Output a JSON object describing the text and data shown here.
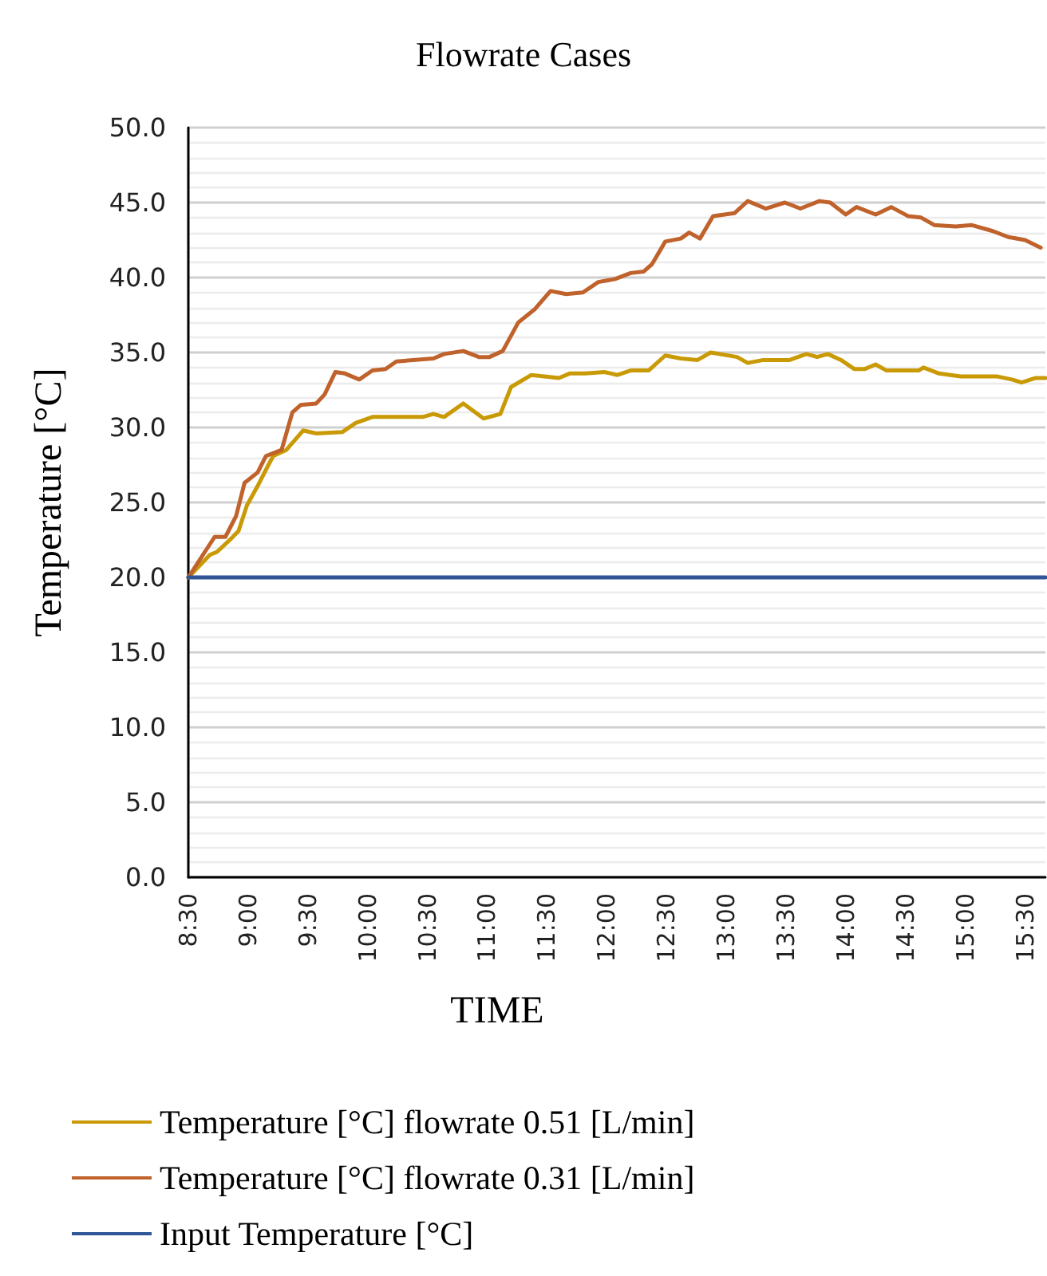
{
  "chart_data": {
    "type": "line",
    "title": "Flowrate Cases",
    "xlabel": "TIME",
    "ylabel": "Temperature [°C]",
    "xlim": [
      8.5,
      15.67
    ],
    "xticks": [
      {
        "value": 8.5,
        "label": "8:30"
      },
      {
        "value": 9,
        "label": "9:00"
      },
      {
        "value": 9.5,
        "label": "9:30"
      },
      {
        "value": 10,
        "label": "10:00"
      },
      {
        "value": 10.5,
        "label": "10:30"
      },
      {
        "value": 11,
        "label": "11:00"
      },
      {
        "value": 11.5,
        "label": "11:30"
      },
      {
        "value": 12,
        "label": "12:00"
      },
      {
        "value": 12.5,
        "label": "12:30"
      },
      {
        "value": 13,
        "label": "13:00"
      },
      {
        "value": 13.5,
        "label": "13:30"
      },
      {
        "value": 14,
        "label": "14:00"
      },
      {
        "value": 14.5,
        "label": "14:30"
      },
      {
        "value": 15,
        "label": "15:00"
      },
      {
        "value": 15.5,
        "label": "15:30"
      }
    ],
    "ylim": [
      0,
      50
    ],
    "yticks": [
      {
        "value": 0,
        "label": "0.0"
      },
      {
        "value": 5,
        "label": "5.0"
      },
      {
        "value": 10,
        "label": "10.0"
      },
      {
        "value": 15,
        "label": "15.0"
      },
      {
        "value": 20,
        "label": "20.0"
      },
      {
        "value": 25,
        "label": "25.0"
      },
      {
        "value": 30,
        "label": "30.0"
      },
      {
        "value": 35,
        "label": "35.0"
      },
      {
        "value": 40,
        "label": "40.0"
      },
      {
        "value": 45,
        "label": "45.0"
      },
      {
        "value": 50,
        "label": "50.0"
      }
    ],
    "grid": "y",
    "legend": "bottom",
    "marker": "none",
    "line_style": "solid",
    "series": [
      {
        "name": "Temperature [°C] flowrate 0.51 [L/min]",
        "color": "#c99a06",
        "x": [
          8.5,
          8.68,
          8.74,
          8.86,
          8.92,
          8.99,
          9.08,
          9.17,
          9.21,
          9.32,
          9.46,
          9.57,
          9.79,
          9.9,
          10.04,
          10.46,
          10.55,
          10.64,
          10.8,
          10.97,
          11.11,
          11.2,
          11.37,
          11.6,
          11.69,
          11.82,
          11.98,
          12.09,
          12.2,
          12.35,
          12.49,
          12.62,
          12.76,
          12.87,
          13.09,
          13.18,
          13.31,
          13.53,
          13.67,
          13.76,
          13.85,
          13.96,
          14.07,
          14.16,
          14.25,
          14.34,
          14.61,
          14.65,
          14.78,
          14.96,
          15.27,
          15.39,
          15.47,
          15.59,
          15.67
        ],
        "values": [
          20.0,
          21.5,
          21.7,
          22.6,
          23.1,
          24.8,
          26.1,
          27.5,
          28.1,
          28.5,
          29.8,
          29.6,
          29.7,
          30.3,
          30.7,
          30.7,
          30.9,
          30.7,
          31.6,
          30.6,
          30.9,
          32.7,
          33.5,
          33.3,
          33.6,
          33.6,
          33.7,
          33.5,
          33.8,
          33.8,
          34.8,
          34.6,
          34.5,
          35.0,
          34.7,
          34.3,
          34.5,
          34.5,
          34.9,
          34.7,
          34.9,
          34.5,
          33.9,
          33.9,
          34.2,
          33.8,
          33.8,
          34.0,
          33.6,
          33.4,
          33.4,
          33.2,
          33.0,
          33.3,
          33.3
        ]
      },
      {
        "name": "Temperature [°C] flowrate 0.31 [L/min]",
        "color": "#c0622b",
        "x": [
          8.5,
          8.72,
          8.81,
          8.9,
          8.97,
          9.08,
          9.15,
          9.28,
          9.37,
          9.44,
          9.57,
          9.64,
          9.73,
          9.81,
          9.93,
          10.04,
          10.15,
          10.24,
          10.55,
          10.64,
          10.8,
          10.93,
          11.02,
          11.13,
          11.26,
          11.4,
          11.53,
          11.66,
          11.8,
          11.93,
          12.07,
          12.2,
          12.31,
          12.38,
          12.49,
          12.62,
          12.69,
          12.78,
          12.89,
          13.07,
          13.18,
          13.33,
          13.49,
          13.62,
          13.78,
          13.87,
          14.0,
          14.09,
          14.25,
          14.38,
          14.52,
          14.63,
          14.74,
          14.92,
          15.05,
          15.23,
          15.36,
          15.5,
          15.63
        ],
        "values": [
          20.0,
          22.7,
          22.7,
          24.1,
          26.3,
          27.0,
          28.1,
          28.5,
          31.0,
          31.5,
          31.6,
          32.2,
          33.7,
          33.6,
          33.2,
          33.8,
          33.9,
          34.4,
          34.6,
          34.9,
          35.1,
          34.7,
          34.7,
          35.1,
          37.0,
          37.9,
          39.1,
          38.9,
          39.0,
          39.7,
          39.9,
          40.3,
          40.4,
          40.9,
          42.4,
          42.6,
          43.0,
          42.6,
          44.1,
          44.3,
          45.1,
          44.6,
          45.0,
          44.6,
          45.1,
          45.0,
          44.2,
          44.7,
          44.2,
          44.7,
          44.1,
          44.0,
          43.5,
          43.4,
          43.5,
          43.1,
          42.7,
          42.5,
          42.0
        ]
      },
      {
        "name": "Input Temperature [°C]",
        "color": "#2f5597",
        "x": [
          8.5,
          15.67
        ],
        "values": [
          20.0,
          20.0
        ]
      }
    ]
  }
}
